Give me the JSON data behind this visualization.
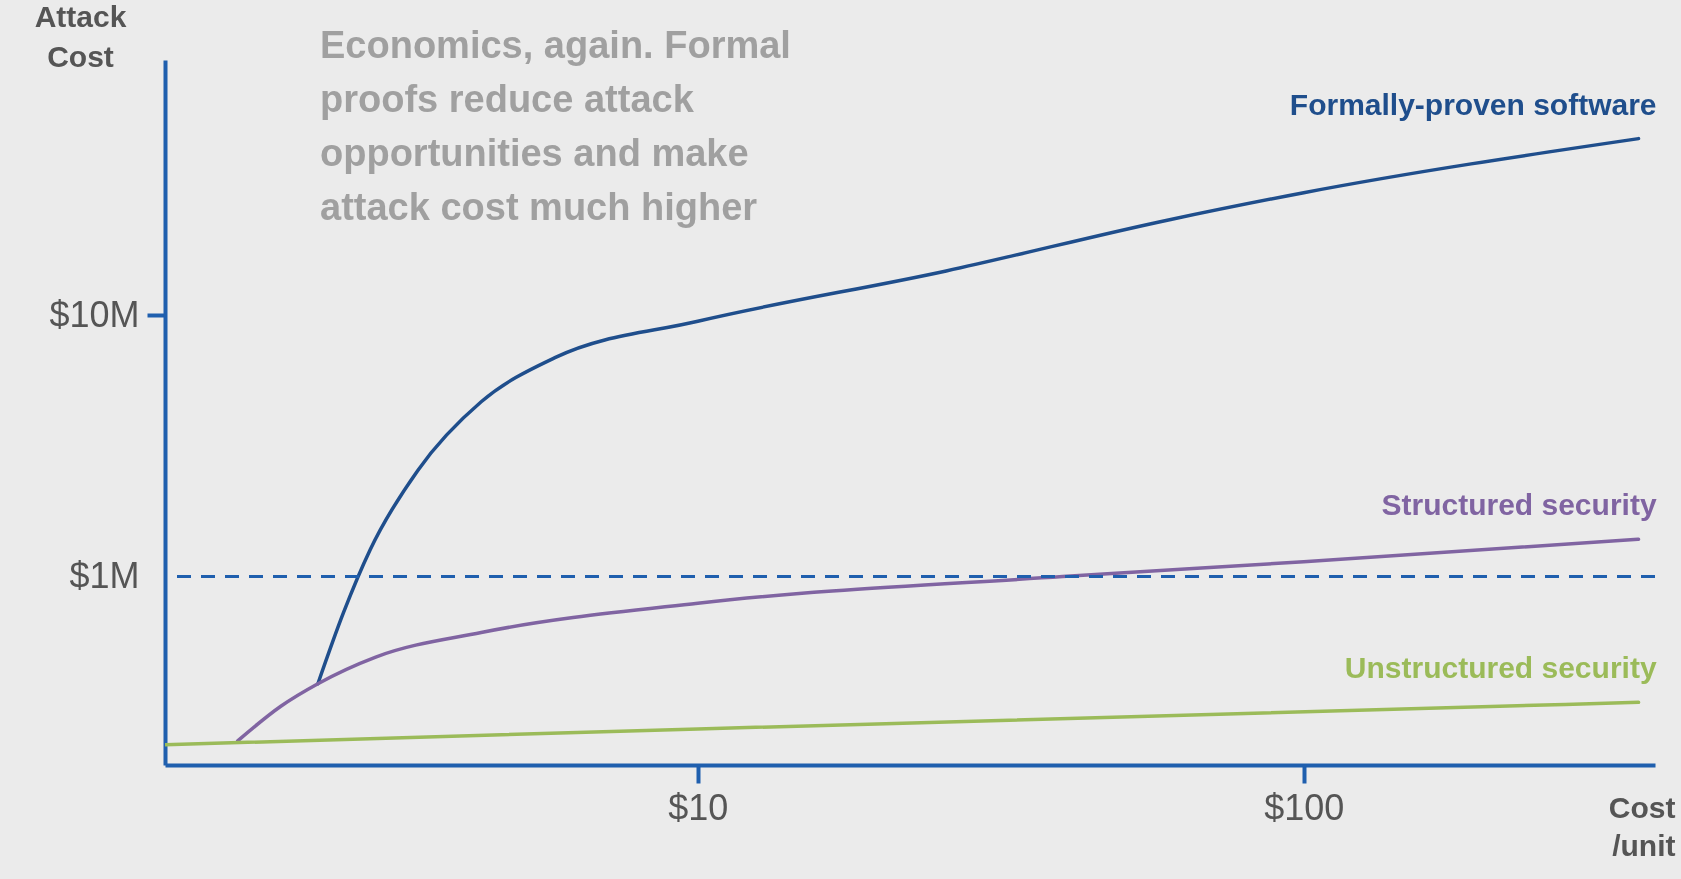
{
  "chart_data": {
    "type": "line",
    "log": "xy",
    "xlabel": "Cost /unit",
    "ylabel": "Attack Cost",
    "annotations": [
      "Economics, again. Formal proofs reduce attack opportunities and make attack cost much higher"
    ],
    "xlim": [
      1.32,
      380
    ],
    "ylim": [
      190000,
      95000000
    ],
    "xticks": [
      {
        "value": 10,
        "label": "$10"
      },
      {
        "value": 100,
        "label": "$100"
      }
    ],
    "yticks": [
      {
        "value": 1000000,
        "label": "$1M"
      },
      {
        "value": 10000000,
        "label": "$10M"
      }
    ],
    "grid": false,
    "legend": false,
    "ref_lines": [
      {
        "axis": "y",
        "value": 1000000,
        "color": "#1f5fae",
        "line_style": "dashed"
      }
    ],
    "series": [
      {
        "name": "Formally-proven software",
        "color": "#1f4e8c",
        "x": [
          2.36,
          2.6,
          2.88,
          3.45,
          4.39,
          5.81,
          10,
          25.7,
          59.8,
          100,
          357
        ],
        "values": [
          389000,
          726000,
          1270000,
          2550000,
          4670000,
          6890000,
          9500000,
          14800000,
          23200000,
          29500000,
          47500000
        ]
      },
      {
        "name": "Structured security",
        "color": "#8064a2",
        "x": [
          1.74,
          2.05,
          2.36,
          2.94,
          4.39,
          10,
          40,
          100,
          357
        ],
        "values": [
          235000,
          319000,
          389000,
          492000,
          611000,
          791000,
          1000000,
          1140000,
          1390000
        ]
      },
      {
        "name": "Unstructured security",
        "color": "#9bbb59",
        "x": [
          1.32,
          10,
          357
        ],
        "values": [
          227000,
          261000,
          330000
        ]
      }
    ]
  }
}
